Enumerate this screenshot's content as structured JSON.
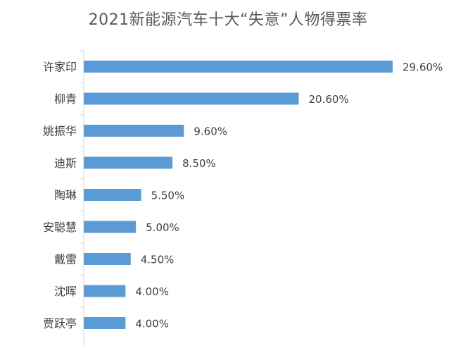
{
  "chart_data": {
    "type": "bar",
    "orientation": "horizontal",
    "title": "2021新能源汽车十大“失意”人物得票率",
    "xlabel": "",
    "ylabel": "",
    "categories": [
      "许家印",
      "柳青",
      "姚振华",
      "迪斯",
      "陶琳",
      "安聪慧",
      "戴雷",
      "沈晖",
      "贾跃亭"
    ],
    "values": [
      29.6,
      20.6,
      9.6,
      8.5,
      5.5,
      5.0,
      4.5,
      4.0,
      4.0
    ],
    "value_labels": [
      "29.60%",
      "20.60%",
      "9.60%",
      "8.50%",
      "5.50%",
      "5.00%",
      "4.50%",
      "4.00%",
      "4.00%"
    ],
    "xlim": [
      0,
      32
    ],
    "grid": false,
    "legend": "none",
    "bar_color": "#5b9bd5",
    "axis_color": "#d9d9d9",
    "label_color": "#404040"
  }
}
